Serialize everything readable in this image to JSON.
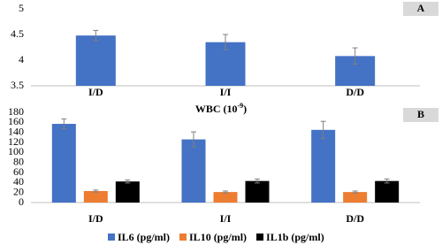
{
  "chart_data": [
    {
      "type": "bar",
      "panel_label": "A",
      "categories": [
        "I/D",
        "I/I",
        "D/D"
      ],
      "values": [
        4.48,
        4.35,
        4.08
      ],
      "errors": [
        0.1,
        0.15,
        0.16
      ],
      "color": "#4472c4",
      "xlabel": [
        "WBC  (10",
        "-9",
        ")"
      ],
      "ylim": [
        3.5,
        5
      ],
      "yticks": [
        3.5,
        4,
        4.5,
        5
      ],
      "grid": false
    },
    {
      "type": "grouped-bar",
      "panel_label": "B",
      "categories": [
        "I/D",
        "I/I",
        "D/D"
      ],
      "series": [
        {
          "name": "IL6 (pg/ml)",
          "color": "#4472c4",
          "values": [
            157,
            126,
            145
          ],
          "errors": [
            10,
            15,
            17
          ]
        },
        {
          "name": "IL10 (pg/ml)",
          "color": "#ed7d31",
          "values": [
            23,
            21,
            21
          ],
          "errors": [
            2,
            2,
            2
          ]
        },
        {
          "name": "IL1b (pg/ml)",
          "color": "#000000",
          "values": [
            42,
            43,
            43
          ],
          "errors": [
            3,
            4,
            4
          ]
        }
      ],
      "ylim": [
        0,
        180
      ],
      "yticks": [
        0,
        20,
        40,
        60,
        80,
        100,
        120,
        140,
        160,
        180
      ],
      "grid": false,
      "legend": "bottom"
    }
  ]
}
